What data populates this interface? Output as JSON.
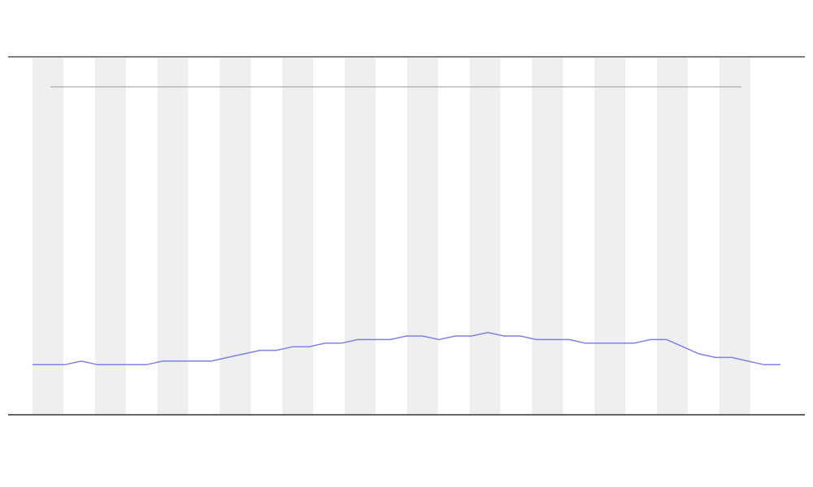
{
  "chart_data": {
    "type": "line",
    "series": [
      {
        "color": "#8080e0",
        "values": [
          14,
          14,
          14,
          15,
          14,
          14,
          14,
          14,
          15,
          15,
          15,
          15,
          16,
          17,
          18,
          18,
          19,
          19,
          20,
          20,
          21,
          21,
          21,
          22,
          22,
          21,
          22,
          22,
          23,
          22,
          22,
          21,
          21,
          21,
          20,
          20,
          20,
          20,
          21,
          21,
          19,
          17,
          16,
          16,
          15,
          14,
          14
        ]
      }
    ],
    "ylim": [
      0,
      100
    ]
  }
}
